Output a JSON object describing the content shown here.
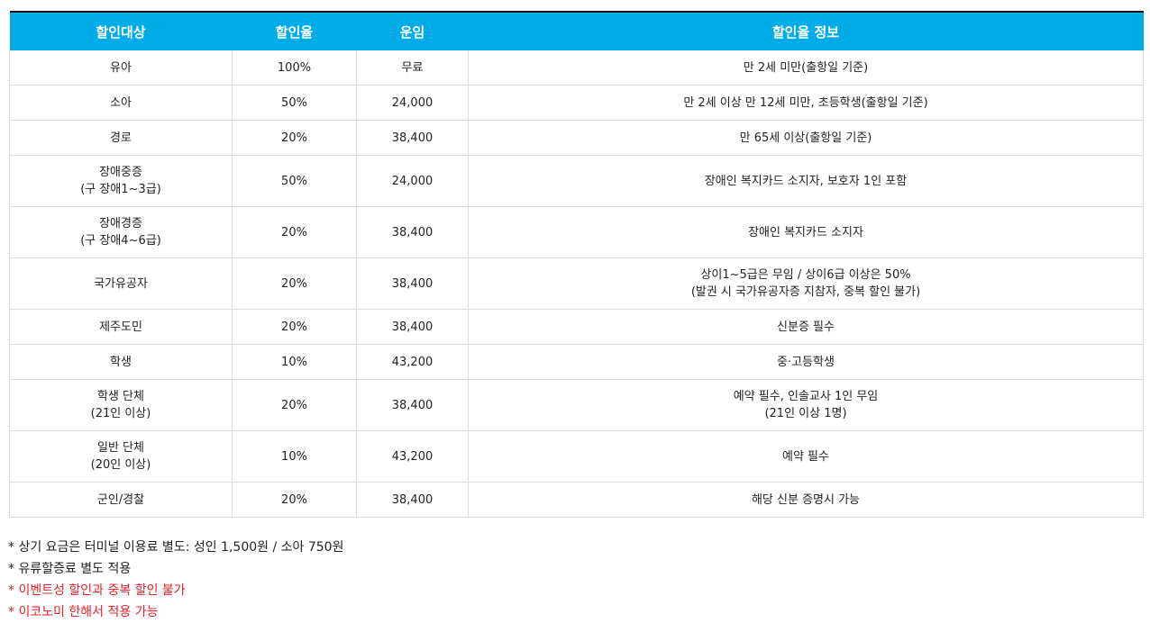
{
  "table": {
    "headers": [
      "할인대상",
      "할인율",
      "운임",
      "할인율 정보"
    ],
    "rows": [
      {
        "target": [
          "유아"
        ],
        "rate": "100%",
        "fare": "무료",
        "info": [
          "만 2세 미만(출항일 기준)"
        ]
      },
      {
        "target": [
          "소아"
        ],
        "rate": "50%",
        "fare": "24,000",
        "info": [
          "만 2세 이상 만 12세 미만, 초등학생(출항일 기준)"
        ]
      },
      {
        "target": [
          "경로"
        ],
        "rate": "20%",
        "fare": "38,400",
        "info": [
          "만 65세 이상(출항일 기준)"
        ]
      },
      {
        "target": [
          "장애중증",
          "(구 장애1~3급)"
        ],
        "rate": "50%",
        "fare": "24,000",
        "info": [
          "장애인 복지카드 소지자, 보호자 1인 포함"
        ]
      },
      {
        "target": [
          "장애경증",
          "(구 장애4~6급)"
        ],
        "rate": "20%",
        "fare": "38,400",
        "info": [
          "장애인 복지카드 소지자"
        ]
      },
      {
        "target": [
          "국가유공자"
        ],
        "rate": "20%",
        "fare": "38,400",
        "info": [
          "상이1~5급은 무임 / 상이6급 이상은 50%",
          "(발권 시 국가유공자증 지참자, 중복 할인 불가)"
        ]
      },
      {
        "target": [
          "제주도민"
        ],
        "rate": "20%",
        "fare": "38,400",
        "info": [
          "신분증 필수"
        ]
      },
      {
        "target": [
          "학생"
        ],
        "rate": "10%",
        "fare": "43,200",
        "info": [
          "중·고등학생"
        ]
      },
      {
        "target": [
          "학생 단체",
          "(21인 이상)"
        ],
        "rate": "20%",
        "fare": "38,400",
        "info": [
          "예약 필수, 인솔교사 1인 무임",
          "(21인 이상 1명)"
        ]
      },
      {
        "target": [
          "일반 단체",
          "(20인 이상)"
        ],
        "rate": "10%",
        "fare": "43,200",
        "info": [
          "예약 필수"
        ]
      },
      {
        "target": [
          "군인/경찰"
        ],
        "rate": "20%",
        "fare": "38,400",
        "info": [
          "해당 신분 증명시 가능"
        ]
      }
    ]
  },
  "notes": [
    {
      "text": "* 상기 요금은 터미널 이용료 별도: 성인 1,500원 / 소아 750원",
      "color": "#222222"
    },
    {
      "text": "* 유류할증료 별도 적용",
      "color": "#222222"
    },
    {
      "text": "* 이벤트성 할인과 중복 할인 불가",
      "color": "#e8212a"
    },
    {
      "text": "* 이코노미 한해서 적용 가능",
      "color": "#e8212a"
    }
  ]
}
